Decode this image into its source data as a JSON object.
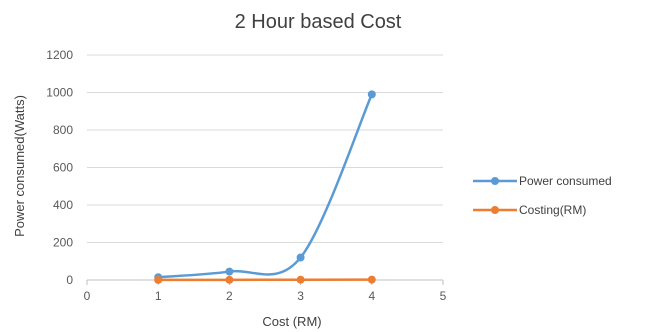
{
  "chart_data": {
    "type": "line",
    "title": "2 Hour based Cost",
    "xlabel": "Cost (RM)",
    "ylabel": "Power consumed(Watts)",
    "xlim": [
      0,
      5
    ],
    "ylim": [
      0,
      1200
    ],
    "x_ticks": [
      "0",
      "1",
      "2",
      "3",
      "4",
      "5"
    ],
    "y_ticks": [
      "0",
      "200",
      "400",
      "600",
      "800",
      "1000",
      "1200"
    ],
    "grid": true,
    "legend_position": "right",
    "x": [
      1,
      2,
      3,
      4
    ],
    "series": [
      {
        "name": "Power consumed",
        "values": [
          15,
          45,
          120,
          990
        ],
        "color": "#5b9bd5",
        "smooth": true
      },
      {
        "name": "Costing(RM)",
        "values": [
          0.5,
          1.0,
          1.5,
          2.0
        ],
        "color": "#ed7d31",
        "smooth": false
      }
    ]
  }
}
